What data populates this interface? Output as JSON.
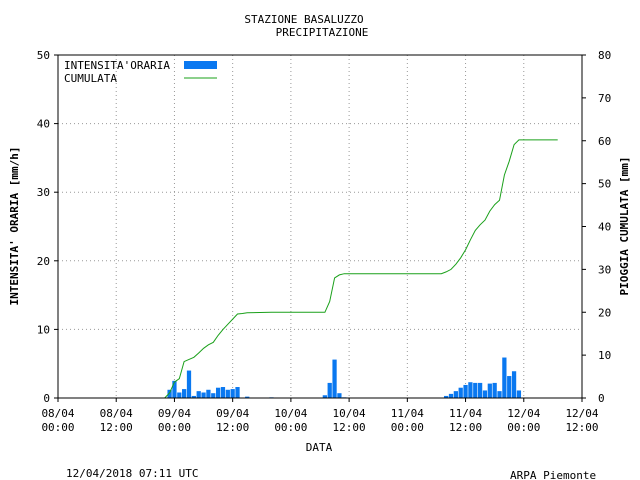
{
  "header": {
    "title": "STAZIONE BASALUZZO",
    "subtitle": "PRECIPITAZIONE"
  },
  "footer": {
    "timestamp": "12/04/2018 07:11 UTC",
    "credit": "ARPA Piemonte",
    "credit_color": "#1a1aa6"
  },
  "chart_data": {
    "type": "bar",
    "xlabel": "DATA",
    "ylabel": "INTENSITA' ORARIA [mm/h]",
    "y2label": "PIOGGIA CUMULATA [mm]",
    "ylim": [
      0,
      50
    ],
    "y2lim": [
      0,
      80
    ],
    "yticks": [
      0,
      10,
      20,
      30,
      40,
      50
    ],
    "y2ticks": [
      0,
      10,
      20,
      30,
      40,
      50,
      60,
      70,
      80
    ],
    "xlim": [
      "2018-04-08T00:00",
      "2018-04-12T12:00"
    ],
    "xticks": [
      {
        "t": "2018-04-08T00:00",
        "date": "08/04",
        "time": "00:00"
      },
      {
        "t": "2018-04-08T12:00",
        "date": "08/04",
        "time": "12:00"
      },
      {
        "t": "2018-04-09T00:00",
        "date": "09/04",
        "time": "00:00"
      },
      {
        "t": "2018-04-09T12:00",
        "date": "09/04",
        "time": "12:00"
      },
      {
        "t": "2018-04-10T00:00",
        "date": "10/04",
        "time": "00:00"
      },
      {
        "t": "2018-04-10T12:00",
        "date": "10/04",
        "time": "12:00"
      },
      {
        "t": "2018-04-11T00:00",
        "date": "11/04",
        "time": "00:00"
      },
      {
        "t": "2018-04-11T12:00",
        "date": "11/04",
        "time": "12:00"
      },
      {
        "t": "2018-04-12T00:00",
        "date": "12/04",
        "time": "00:00"
      },
      {
        "t": "2018-04-12T12:00",
        "date": "12/04",
        "time": "12:00"
      }
    ],
    "grid": true,
    "legend_position": "top-left",
    "series": [
      {
        "name": "INTENSITA'ORARIA",
        "type": "bar",
        "axis": "left",
        "color": "#0a78f0",
        "points": [
          [
            "2018-04-08T23:00",
            1.2
          ],
          [
            "2018-04-09T00:00",
            2.5
          ],
          [
            "2018-04-09T01:00",
            0.8
          ],
          [
            "2018-04-09T02:00",
            1.3
          ],
          [
            "2018-04-09T03:00",
            4.0
          ],
          [
            "2018-04-09T04:00",
            0.3
          ],
          [
            "2018-04-09T05:00",
            1.0
          ],
          [
            "2018-04-09T06:00",
            0.8
          ],
          [
            "2018-04-09T07:00",
            1.2
          ],
          [
            "2018-04-09T08:00",
            0.7
          ],
          [
            "2018-04-09T09:00",
            1.5
          ],
          [
            "2018-04-09T10:00",
            1.6
          ],
          [
            "2018-04-09T11:00",
            1.2
          ],
          [
            "2018-04-09T12:00",
            1.3
          ],
          [
            "2018-04-09T13:00",
            1.6
          ],
          [
            "2018-04-09T15:00",
            0.2
          ],
          [
            "2018-04-09T20:00",
            0.1
          ],
          [
            "2018-04-10T07:00",
            0.4
          ],
          [
            "2018-04-10T08:00",
            2.2
          ],
          [
            "2018-04-10T09:00",
            5.6
          ],
          [
            "2018-04-10T10:00",
            0.7
          ],
          [
            "2018-04-10T11:00",
            0.1
          ],
          [
            "2018-04-11T08:00",
            0.3
          ],
          [
            "2018-04-11T09:00",
            0.6
          ],
          [
            "2018-04-11T10:00",
            1.0
          ],
          [
            "2018-04-11T11:00",
            1.5
          ],
          [
            "2018-04-11T12:00",
            1.9
          ],
          [
            "2018-04-11T13:00",
            2.3
          ],
          [
            "2018-04-11T14:00",
            2.2
          ],
          [
            "2018-04-11T15:00",
            2.2
          ],
          [
            "2018-04-11T16:00",
            1.1
          ],
          [
            "2018-04-11T17:00",
            2.1
          ],
          [
            "2018-04-11T18:00",
            2.2
          ],
          [
            "2018-04-11T19:00",
            1.0
          ],
          [
            "2018-04-11T20:00",
            5.9
          ],
          [
            "2018-04-11T21:00",
            3.2
          ],
          [
            "2018-04-11T22:00",
            3.9
          ],
          [
            "2018-04-11T23:00",
            1.1
          ]
        ]
      },
      {
        "name": "CUMULATA",
        "type": "line",
        "axis": "right",
        "color": "#1aa01a",
        "points": [
          [
            "2018-04-08T00:00",
            0
          ],
          [
            "2018-04-08T22:00",
            0
          ],
          [
            "2018-04-08T23:00",
            1.2
          ],
          [
            "2018-04-09T00:00",
            3.7
          ],
          [
            "2018-04-09T01:00",
            4.5
          ],
          [
            "2018-04-09T02:00",
            8.5
          ],
          [
            "2018-04-09T03:00",
            9.0
          ],
          [
            "2018-04-09T04:00",
            9.5
          ],
          [
            "2018-04-09T05:00",
            10.5
          ],
          [
            "2018-04-09T06:00",
            11.6
          ],
          [
            "2018-04-09T07:00",
            12.4
          ],
          [
            "2018-04-09T08:00",
            13.0
          ],
          [
            "2018-04-09T09:00",
            14.6
          ],
          [
            "2018-04-09T10:00",
            16.0
          ],
          [
            "2018-04-09T11:00",
            17.2
          ],
          [
            "2018-04-09T12:00",
            18.4
          ],
          [
            "2018-04-09T13:00",
            19.6
          ],
          [
            "2018-04-09T14:00",
            19.7
          ],
          [
            "2018-04-09T15:00",
            19.9
          ],
          [
            "2018-04-09T20:00",
            20.0
          ],
          [
            "2018-04-10T07:00",
            20.0
          ],
          [
            "2018-04-10T08:00",
            22.5
          ],
          [
            "2018-04-10T09:00",
            28.0
          ],
          [
            "2018-04-10T10:00",
            28.7
          ],
          [
            "2018-04-10T11:00",
            29.0
          ],
          [
            "2018-04-11T07:00",
            29.0
          ],
          [
            "2018-04-11T08:00",
            29.4
          ],
          [
            "2018-04-11T09:00",
            30.0
          ],
          [
            "2018-04-11T10:00",
            31.2
          ],
          [
            "2018-04-11T11:00",
            32.7
          ],
          [
            "2018-04-11T12:00",
            34.6
          ],
          [
            "2018-04-11T13:00",
            36.9
          ],
          [
            "2018-04-11T14:00",
            39.1
          ],
          [
            "2018-04-11T15:00",
            40.4
          ],
          [
            "2018-04-11T16:00",
            41.5
          ],
          [
            "2018-04-11T17:00",
            43.6
          ],
          [
            "2018-04-11T18:00",
            45.1
          ],
          [
            "2018-04-11T19:00",
            46.1
          ],
          [
            "2018-04-11T20:00",
            52.0
          ],
          [
            "2018-04-11T21:00",
            55.2
          ],
          [
            "2018-04-11T22:00",
            59.1
          ],
          [
            "2018-04-11T23:00",
            60.2
          ],
          [
            "2018-04-12T07:00",
            60.2
          ]
        ]
      }
    ]
  }
}
